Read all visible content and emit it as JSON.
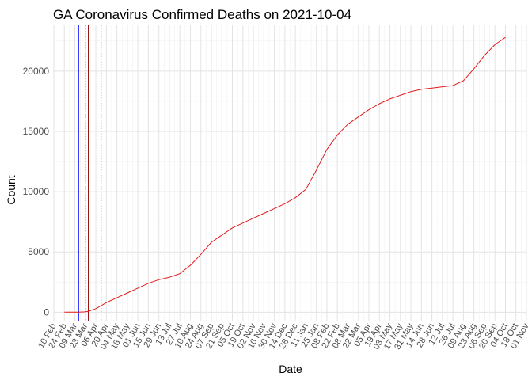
{
  "chart_data": {
    "type": "line",
    "title": "GA Coronavirus Confirmed Deaths on 2021-10-04",
    "xlabel": "Date",
    "ylabel": "Count",
    "x_range": [
      "2020-02-10",
      "2021-11-01"
    ],
    "ylim": [
      -700,
      23800
    ],
    "y_ticks": [
      0,
      5000,
      10000,
      15000,
      20000
    ],
    "grid": true,
    "legend": "none",
    "colors": {
      "line": "#e41a1c",
      "event_blue": "#0000ff",
      "event_red": "#ff0000"
    },
    "vertical_lines": [
      {
        "date": "2020-03-14",
        "color": "#0000ff",
        "style": "solid"
      },
      {
        "date": "2020-03-23",
        "color": "#ff0000",
        "style": "dotted"
      },
      {
        "date": "2020-03-27",
        "color": "#8b0000",
        "style": "solid"
      },
      {
        "date": "2020-04-13",
        "color": "#ff0000",
        "style": "dotted"
      }
    ],
    "x_tick_labels": [
      "10 Feb",
      "24 Feb",
      "09 Mar",
      "23 Mar",
      "06 Apr",
      "20 Apr",
      "04 May",
      "18 May",
      "01 Jun",
      "15 Jun",
      "29 Jun",
      "13 Jul",
      "27 Jul",
      "10 Aug",
      "24 Aug",
      "07 Sep",
      "21 Sep",
      "05 Oct",
      "19 Oct",
      "02 Nov",
      "16 Nov",
      "30 Nov",
      "14 Dec",
      "28 Dec",
      "11 Jan",
      "25 Jan",
      "08 Feb",
      "22 Feb",
      "08 Mar",
      "22 Mar",
      "05 Apr",
      "19 Apr",
      "03 May",
      "17 May",
      "31 May",
      "14 Jun",
      "28 Jun",
      "12 Jul",
      "26 Jul",
      "09 Aug",
      "23 Aug",
      "06 Sep",
      "20 Sep",
      "04 Oct",
      "18 Oct",
      "01 Nov"
    ],
    "series": [
      {
        "name": "Confirmed Deaths",
        "points": [
          [
            "2020-02-24",
            0
          ],
          [
            "2020-03-14",
            0
          ],
          [
            "2020-03-23",
            30
          ],
          [
            "2020-03-27",
            80
          ],
          [
            "2020-04-06",
            300
          ],
          [
            "2020-04-20",
            800
          ],
          [
            "2020-05-04",
            1200
          ],
          [
            "2020-05-18",
            1600
          ],
          [
            "2020-06-01",
            2000
          ],
          [
            "2020-06-15",
            2400
          ],
          [
            "2020-06-29",
            2700
          ],
          [
            "2020-07-13",
            2900
          ],
          [
            "2020-07-27",
            3200
          ],
          [
            "2020-08-10",
            3900
          ],
          [
            "2020-08-24",
            4800
          ],
          [
            "2020-09-07",
            5800
          ],
          [
            "2020-09-21",
            6400
          ],
          [
            "2020-10-05",
            7000
          ],
          [
            "2020-10-19",
            7400
          ],
          [
            "2020-11-02",
            7800
          ],
          [
            "2020-11-16",
            8200
          ],
          [
            "2020-11-30",
            8600
          ],
          [
            "2020-12-14",
            9000
          ],
          [
            "2020-12-28",
            9500
          ],
          [
            "2021-01-11",
            10200
          ],
          [
            "2021-01-25",
            11800
          ],
          [
            "2021-02-08",
            13500
          ],
          [
            "2021-02-22",
            14700
          ],
          [
            "2021-03-08",
            15600
          ],
          [
            "2021-03-22",
            16200
          ],
          [
            "2021-04-05",
            16800
          ],
          [
            "2021-04-19",
            17300
          ],
          [
            "2021-05-03",
            17700
          ],
          [
            "2021-05-17",
            18000
          ],
          [
            "2021-05-31",
            18300
          ],
          [
            "2021-06-14",
            18500
          ],
          [
            "2021-06-28",
            18600
          ],
          [
            "2021-07-12",
            18700
          ],
          [
            "2021-07-26",
            18800
          ],
          [
            "2021-08-09",
            19200
          ],
          [
            "2021-08-23",
            20200
          ],
          [
            "2021-09-06",
            21300
          ],
          [
            "2021-09-20",
            22200
          ],
          [
            "2021-10-04",
            22800
          ]
        ]
      }
    ]
  }
}
